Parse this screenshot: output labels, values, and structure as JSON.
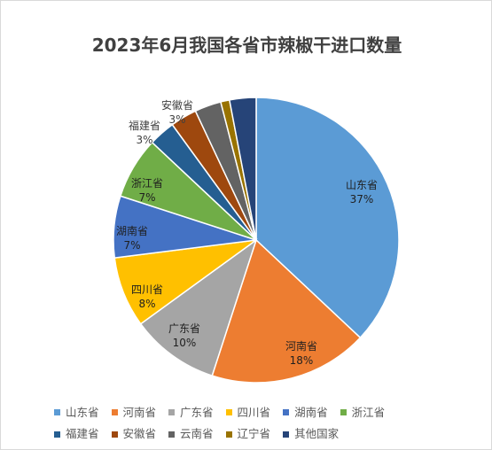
{
  "chart_data": {
    "type": "pie",
    "title": "2023年6月我国各省市辣椒干进口数量",
    "slices": [
      {
        "label": "山东省",
        "value": 37,
        "display": "37%",
        "color": "#5B9BD5",
        "show_label": true
      },
      {
        "label": "河南省",
        "value": 18,
        "display": "18%",
        "color": "#ED7D31",
        "show_label": true
      },
      {
        "label": "广东省",
        "value": 10,
        "display": "10%",
        "color": "#A5A5A5",
        "show_label": true
      },
      {
        "label": "四川省",
        "value": 8,
        "display": "8%",
        "color": "#FFC000",
        "show_label": true
      },
      {
        "label": "湖南省",
        "value": 7,
        "display": "7%",
        "color": "#4472C4",
        "show_label": true
      },
      {
        "label": "浙江省",
        "value": 7,
        "display": "7%",
        "color": "#70AD47",
        "show_label": true
      },
      {
        "label": "福建省",
        "value": 3,
        "display": "3%",
        "color": "#255E91",
        "show_label": true
      },
      {
        "label": "安徽省",
        "value": 3,
        "display": "3%",
        "color": "#9E480E",
        "show_label": true
      },
      {
        "label": "云南省",
        "value": 3,
        "display": "",
        "color": "#636363",
        "show_label": false
      },
      {
        "label": "辽宁省",
        "value": 1,
        "display": "",
        "color": "#997300",
        "show_label": false
      },
      {
        "label": "其他国家",
        "value": 3,
        "display": "",
        "color": "#264478",
        "show_label": false
      }
    ],
    "legend_position": "bottom"
  }
}
